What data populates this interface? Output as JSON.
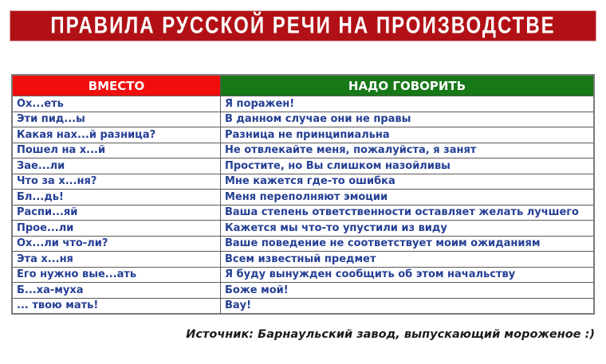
{
  "banner": {
    "title": "ПРАВИЛА РУССКОЙ РЕЧИ НА ПРОИЗВОДСТВЕ",
    "bg_color": "#b11116",
    "text_color": "#ffffff"
  },
  "table": {
    "headers": [
      {
        "label": "ВМЕСТО",
        "bg_color": "#f20d0d",
        "text_color": "#ffffff"
      },
      {
        "label": "НАДО ГОВОРИТЬ",
        "bg_color": "#177817",
        "text_color": "#ffffff"
      }
    ],
    "row_text_color": "#253f94",
    "rows": [
      [
        "Ох...еть",
        "Я поражен!"
      ],
      [
        "Эти пид...ы",
        "В данном случае они не правы"
      ],
      [
        "Какая нах...й разница?",
        "Разница не принципиальна"
      ],
      [
        "Пошел на х...й",
        "Не отвлекайте меня, пожалуйста, я занят"
      ],
      [
        "Зае...ли",
        "Простите, но Вы слишком назойливы"
      ],
      [
        "Что за х...ня?",
        "Мне кажется где-то ошибка"
      ],
      [
        "Бл...дь!",
        "Меня переполняют эмоции"
      ],
      [
        "Распи...яй",
        "Ваша степень ответственности оставляет желать лучшего"
      ],
      [
        "Прое...ли",
        "Кажется мы что-то упустили из виду"
      ],
      [
        "Ох...ли что-ли?",
        "Ваше поведение не соответствует моим ожиданиям"
      ],
      [
        "Эта х...ня",
        "Всем известный предмет"
      ],
      [
        "Его нужно вые...ать",
        "Я буду вынужден сообщить об этом начальству"
      ],
      [
        "Б...ха-муха",
        "Боже мой!"
      ],
      [
        "... твою мать!",
        "Вау!"
      ]
    ]
  },
  "footer": {
    "source": "Источник: Барнаульский завод, выпускающий мороженое :)"
  }
}
